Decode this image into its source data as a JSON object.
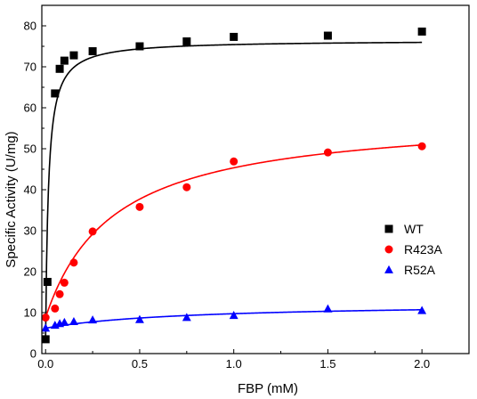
{
  "chart_data": {
    "type": "scatter",
    "xlabel": "FBP (mM)",
    "ylabel": "Specific Activity (U/mg)",
    "xlim": [
      -0.02,
      2.25
    ],
    "ylim": [
      0,
      85
    ],
    "x_ticks": [
      0.0,
      0.5,
      1.0,
      1.5,
      2.0
    ],
    "x_tick_labels": [
      "0.0",
      "0.5",
      "1.0",
      "1.5",
      "2.0"
    ],
    "y_ticks": [
      0,
      10,
      20,
      30,
      40,
      50,
      60,
      70,
      80
    ],
    "y_tick_labels": [
      "0",
      "10",
      "20",
      "30",
      "40",
      "50",
      "60",
      "70",
      "80"
    ],
    "grid": false,
    "legend_position": "right-middle",
    "series": [
      {
        "name": "WT",
        "color": "#000000",
        "marker": "square",
        "x": [
          0.0,
          0.01,
          0.05,
          0.075,
          0.1,
          0.15,
          0.25,
          0.5,
          0.75,
          1.0,
          1.5,
          2.0
        ],
        "y": [
          3.5,
          17.5,
          63.5,
          69.5,
          71.5,
          72.8,
          73.8,
          75.0,
          76.2,
          77.3,
          77.6,
          78.6
        ],
        "fit": {
          "vmax": 76.5,
          "k": 0.015,
          "v0": 3.5
        }
      },
      {
        "name": "R423A",
        "color": "#ff0000",
        "marker": "circle",
        "x": [
          0.0,
          0.05,
          0.075,
          0.1,
          0.15,
          0.25,
          0.5,
          0.75,
          1.0,
          1.5,
          2.0
        ],
        "y": [
          8.8,
          11.0,
          14.5,
          17.3,
          22.2,
          29.8,
          35.8,
          40.6,
          46.9,
          49.1,
          50.6
        ],
        "fit": {
          "vmax": 50.5,
          "k": 0.36,
          "v0": 8.8,
          "vend": 50.5
        }
      },
      {
        "name": "R52A",
        "color": "#0000ff",
        "marker": "triangle",
        "x": [
          0.0,
          0.05,
          0.075,
          0.1,
          0.15,
          0.25,
          0.5,
          0.75,
          1.0,
          1.5,
          2.0
        ],
        "y": [
          6.2,
          6.9,
          7.3,
          7.6,
          7.8,
          8.2,
          8.3,
          8.8,
          9.3,
          10.9,
          10.5
        ],
        "fit": {
          "v0": 6.2,
          "vend": 10.7,
          "k": 0.75
        }
      }
    ]
  }
}
